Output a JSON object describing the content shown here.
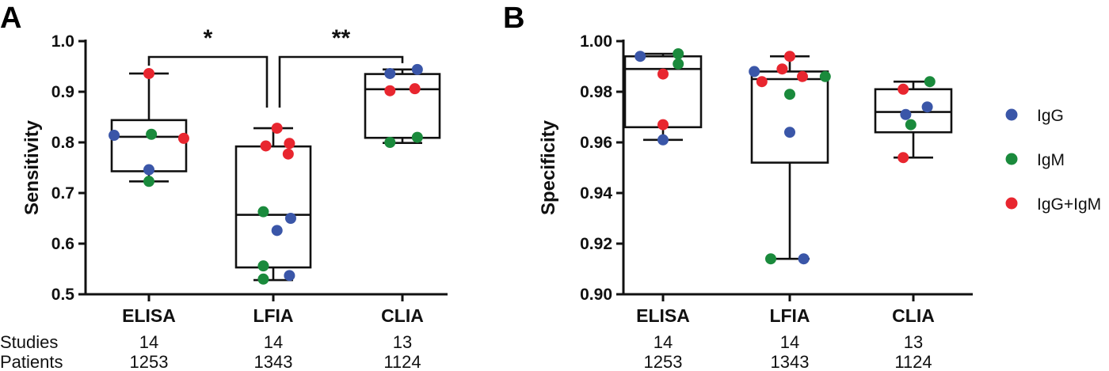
{
  "colors": {
    "IgG": "#3a56a8",
    "IgM": "#1a8a3c",
    "IgG+IgM": "#e8262f"
  },
  "footer": {
    "studies_label": "Studies",
    "patients_label": "Patients",
    "studies": [
      "14",
      "14",
      "13"
    ],
    "patients": [
      "1253",
      "1343",
      "1124"
    ]
  },
  "legend": [
    "IgG",
    "IgM",
    "IgG+IgM"
  ],
  "chart_data": [
    {
      "panel": "A",
      "type": "box",
      "categories": [
        "ELISA",
        "LFIA",
        "CLIA"
      ],
      "ylabel": "Sensitivity",
      "ylim": [
        0.5,
        1.0
      ],
      "yticks": [
        "0.5",
        "0.6",
        "0.7",
        "0.8",
        "0.9",
        "1.0"
      ],
      "boxes": [
        {
          "min": 0.723,
          "q1": 0.743,
          "median": 0.811,
          "q3": 0.844,
          "max": 0.936
        },
        {
          "min": 0.528,
          "q1": 0.553,
          "median": 0.657,
          "q3": 0.792,
          "max": 0.828
        },
        {
          "min": 0.799,
          "q1": 0.809,
          "median": 0.905,
          "q3": 0.935,
          "max": 0.944
        }
      ],
      "points": [
        {
          "cat": 0,
          "x_off": -0.28,
          "y": 0.814,
          "series": "IgG"
        },
        {
          "cat": 0,
          "x_off": 0.0,
          "y": 0.746,
          "series": "IgG"
        },
        {
          "cat": 0,
          "x_off": 0.02,
          "y": 0.816,
          "series": "IgM"
        },
        {
          "cat": 0,
          "x_off": 0.0,
          "y": 0.723,
          "series": "IgM"
        },
        {
          "cat": 0,
          "x_off": 0.0,
          "y": 0.936,
          "series": "IgG+IgM"
        },
        {
          "cat": 0,
          "x_off": 0.28,
          "y": 0.808,
          "series": "IgG+IgM"
        },
        {
          "cat": 1,
          "x_off": 0.14,
          "y": 0.65,
          "series": "IgG"
        },
        {
          "cat": 1,
          "x_off": 0.03,
          "y": 0.626,
          "series": "IgG"
        },
        {
          "cat": 1,
          "x_off": 0.13,
          "y": 0.537,
          "series": "IgG"
        },
        {
          "cat": 1,
          "x_off": -0.08,
          "y": 0.663,
          "series": "IgM"
        },
        {
          "cat": 1,
          "x_off": -0.08,
          "y": 0.556,
          "series": "IgM"
        },
        {
          "cat": 1,
          "x_off": -0.08,
          "y": 0.53,
          "series": "IgM"
        },
        {
          "cat": 1,
          "x_off": 0.03,
          "y": 0.828,
          "series": "IgG+IgM"
        },
        {
          "cat": 1,
          "x_off": -0.06,
          "y": 0.793,
          "series": "IgG+IgM"
        },
        {
          "cat": 1,
          "x_off": 0.13,
          "y": 0.798,
          "series": "IgG+IgM"
        },
        {
          "cat": 1,
          "x_off": 0.12,
          "y": 0.777,
          "series": "IgG+IgM"
        },
        {
          "cat": 2,
          "x_off": -0.1,
          "y": 0.936,
          "series": "IgG"
        },
        {
          "cat": 2,
          "x_off": 0.12,
          "y": 0.944,
          "series": "IgG"
        },
        {
          "cat": 2,
          "x_off": -0.1,
          "y": 0.8,
          "series": "IgM"
        },
        {
          "cat": 2,
          "x_off": 0.12,
          "y": 0.81,
          "series": "IgM"
        },
        {
          "cat": 2,
          "x_off": -0.1,
          "y": 0.902,
          "series": "IgG+IgM"
        },
        {
          "cat": 2,
          "x_off": 0.1,
          "y": 0.906,
          "series": "IgG+IgM"
        }
      ],
      "significance": [
        {
          "from": 0,
          "to": 1,
          "label": "*"
        },
        {
          "from": 1,
          "to": 2,
          "label": "**"
        }
      ]
    },
    {
      "panel": "B",
      "type": "box",
      "categories": [
        "ELISA",
        "LFIA",
        "CLIA"
      ],
      "ylabel": "Specificity",
      "ylim": [
        0.9,
        1.0
      ],
      "yticks": [
        "0.90",
        "0.92",
        "0.94",
        "0.96",
        "0.98",
        "1.00"
      ],
      "boxes": [
        {
          "min": 0.961,
          "q1": 0.966,
          "median": 0.989,
          "q3": 0.994,
          "max": 0.995
        },
        {
          "min": 0.914,
          "q1": 0.952,
          "median": 0.985,
          "q3": 0.988,
          "max": 0.994
        },
        {
          "min": 0.954,
          "q1": 0.964,
          "median": 0.972,
          "q3": 0.981,
          "max": 0.984
        }
      ],
      "points": [
        {
          "cat": 0,
          "x_off": -0.18,
          "y": 0.994,
          "series": "IgG"
        },
        {
          "cat": 0,
          "x_off": 0.0,
          "y": 0.961,
          "series": "IgG"
        },
        {
          "cat": 0,
          "x_off": 0.12,
          "y": 0.995,
          "series": "IgM"
        },
        {
          "cat": 0,
          "x_off": 0.12,
          "y": 0.991,
          "series": "IgM"
        },
        {
          "cat": 0,
          "x_off": 0.0,
          "y": 0.987,
          "series": "IgG+IgM"
        },
        {
          "cat": 0,
          "x_off": 0.0,
          "y": 0.967,
          "series": "IgG+IgM"
        },
        {
          "cat": 1,
          "x_off": -0.28,
          "y": 0.988,
          "series": "IgG"
        },
        {
          "cat": 1,
          "x_off": 0.0,
          "y": 0.964,
          "series": "IgG"
        },
        {
          "cat": 1,
          "x_off": 0.11,
          "y": 0.914,
          "series": "IgG"
        },
        {
          "cat": 1,
          "x_off": 0.28,
          "y": 0.986,
          "series": "IgM"
        },
        {
          "cat": 1,
          "x_off": 0.0,
          "y": 0.979,
          "series": "IgM"
        },
        {
          "cat": 1,
          "x_off": -0.15,
          "y": 0.914,
          "series": "IgM"
        },
        {
          "cat": 1,
          "x_off": 0.0,
          "y": 0.994,
          "series": "IgG+IgM"
        },
        {
          "cat": 1,
          "x_off": -0.06,
          "y": 0.989,
          "series": "IgG+IgM"
        },
        {
          "cat": 1,
          "x_off": -0.22,
          "y": 0.984,
          "series": "IgG+IgM"
        },
        {
          "cat": 1,
          "x_off": 0.1,
          "y": 0.986,
          "series": "IgG+IgM"
        },
        {
          "cat": 2,
          "x_off": 0.11,
          "y": 0.974,
          "series": "IgG"
        },
        {
          "cat": 2,
          "x_off": -0.06,
          "y": 0.971,
          "series": "IgG"
        },
        {
          "cat": 2,
          "x_off": 0.13,
          "y": 0.984,
          "series": "IgM"
        },
        {
          "cat": 2,
          "x_off": -0.02,
          "y": 0.967,
          "series": "IgM"
        },
        {
          "cat": 2,
          "x_off": -0.08,
          "y": 0.981,
          "series": "IgG+IgM"
        },
        {
          "cat": 2,
          "x_off": -0.08,
          "y": 0.954,
          "series": "IgG+IgM"
        }
      ]
    }
  ]
}
